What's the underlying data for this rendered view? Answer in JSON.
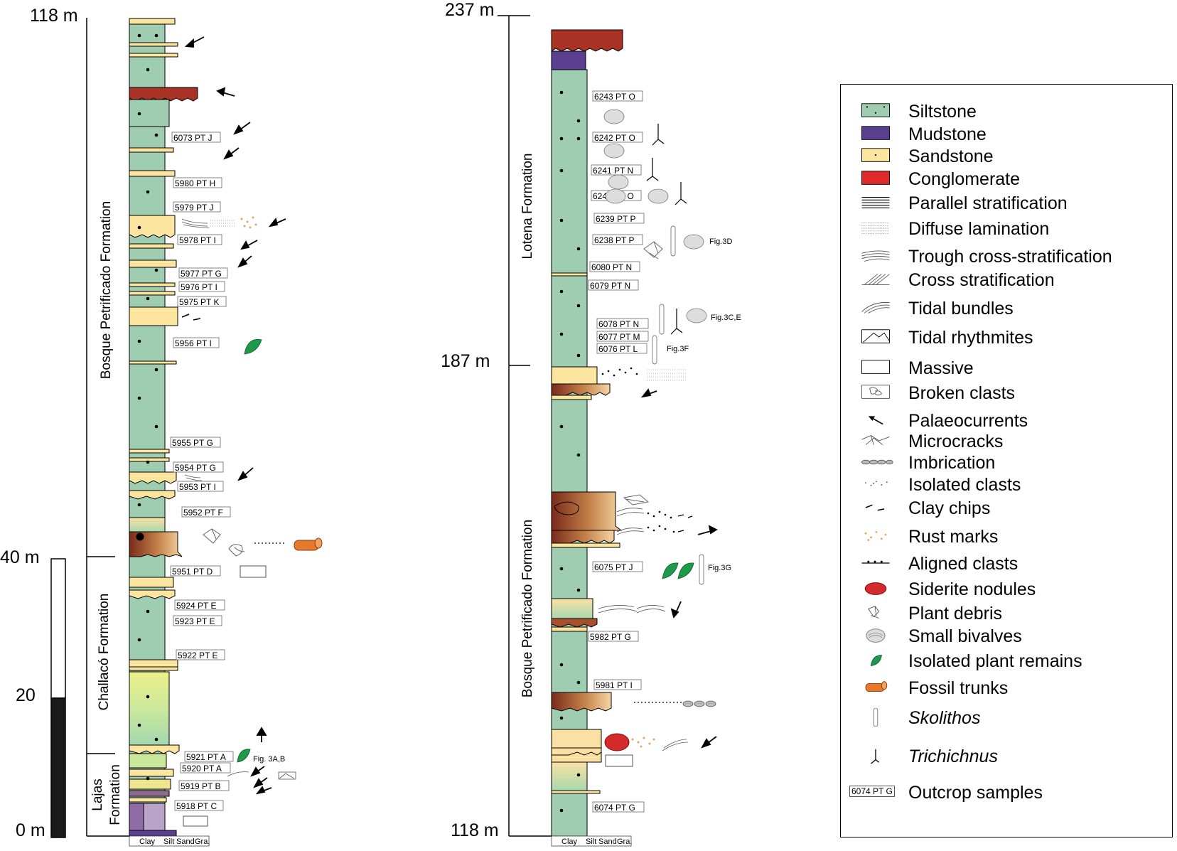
{
  "colors": {
    "siltstone": "#9fcdb1",
    "mudstone": "#5b3f8f",
    "sandstone": "#fbe59f",
    "conglomerate": "#a83224",
    "plant": "#1f9a4a",
    "trunk": "#e8782a",
    "siderite": "#d42a2a"
  },
  "left_column": {
    "top_label": "118 m",
    "mid_label": "40 m",
    "scale_label": "20",
    "bottom_label": "0 m",
    "formations": [
      "Bosque Petrificado Formation",
      "Challacó Formation",
      "Lajas",
      "Formation"
    ],
    "samples": [
      "6073 PT J",
      "5980 PT H",
      "5979 PT J",
      "5978 PT I",
      "5977 PT G",
      "5976 PT I",
      "5975 PT K",
      "5956 PT I",
      "5955 PT G",
      "5954 PT G",
      "5953 PT I",
      "5952 PT F",
      "5951 PT D",
      "5924 PT E",
      "5923 PT E",
      "5922 PT E",
      "5921 PT A",
      "5920 PT A",
      "5919 PT B",
      "5918 PT C"
    ],
    "fig_refs": [
      "Fig. 3A,B"
    ],
    "grain_axis": [
      "Clay",
      "Silt",
      "Sand",
      "Gra."
    ]
  },
  "right_column": {
    "top_label": "237 m",
    "mid_label": "187 m",
    "bottom_label": "118 m",
    "formations": [
      "Lotena Formation",
      "Bosque Petrificado Formation"
    ],
    "samples": [
      "6243 PT O",
      "6242 PT O",
      "6241 PT N",
      "6240 PT O",
      "6239 PT P",
      "6238 PT P",
      "6080 PT N",
      "6079 PT N",
      "6078 PT N",
      "6077 PT M",
      "6076 PT L",
      "6075 PT J",
      "5982 PT G",
      "5981 PT I",
      "6074 PT G"
    ],
    "fig_refs": [
      "Fig.3D",
      "Fig.3C,E",
      "Fig.3F",
      "Fig.3G"
    ],
    "grain_axis": [
      "Clay",
      "Silt",
      "Sand",
      "Gra."
    ]
  },
  "legend": [
    {
      "icon": "siltstone",
      "label": "Siltstone"
    },
    {
      "icon": "mudstone",
      "label": "Mudstone"
    },
    {
      "icon": "sandstone",
      "label": "Sandstone"
    },
    {
      "icon": "conglomerate",
      "label": "Conglomerate"
    },
    {
      "icon": "parallel-stratification",
      "label": "Parallel stratification"
    },
    {
      "icon": "diffuse-lamination",
      "label": "Diffuse lamination"
    },
    {
      "icon": "trough-cross-stratification",
      "label": "Trough cross-stratification"
    },
    {
      "icon": "cross-stratification",
      "label": "Cross stratification"
    },
    {
      "icon": "tidal-bundles",
      "label": "Tidal bundles"
    },
    {
      "icon": "tidal-rhythmites",
      "label": "Tidal rhythmites"
    },
    {
      "icon": "massive",
      "label": "Massive"
    },
    {
      "icon": "broken-clasts",
      "label": "Broken clasts"
    },
    {
      "icon": "palaeocurrent-arrow",
      "label": "Palaeocurrents"
    },
    {
      "icon": "microcracks",
      "label": "Microcracks"
    },
    {
      "icon": "imbrication",
      "label": "Imbrication"
    },
    {
      "icon": "isolated-clasts",
      "label": "Isolated clasts"
    },
    {
      "icon": "clay-chips",
      "label": "Clay chips"
    },
    {
      "icon": "rust-marks",
      "label": "Rust marks"
    },
    {
      "icon": "aligned-clasts",
      "label": "Aligned clasts"
    },
    {
      "icon": "siderite-nodules",
      "label": "Siderite nodules"
    },
    {
      "icon": "plant-debris",
      "label": "Plant debris"
    },
    {
      "icon": "small-bivalves",
      "label": "Small bivalves"
    },
    {
      "icon": "isolated-plant-remains",
      "label": "Isolated plant remains"
    },
    {
      "icon": "fossil-trunks",
      "label": "Fossil trunks"
    },
    {
      "icon": "skolithos",
      "label": "Skolithos",
      "italic": true
    },
    {
      "icon": "trichichnus",
      "label": "Trichichnus",
      "italic": true
    },
    {
      "icon": "outcrop-sample",
      "label": "Outcrop samples",
      "sample_tag": "6074 PT G"
    }
  ]
}
